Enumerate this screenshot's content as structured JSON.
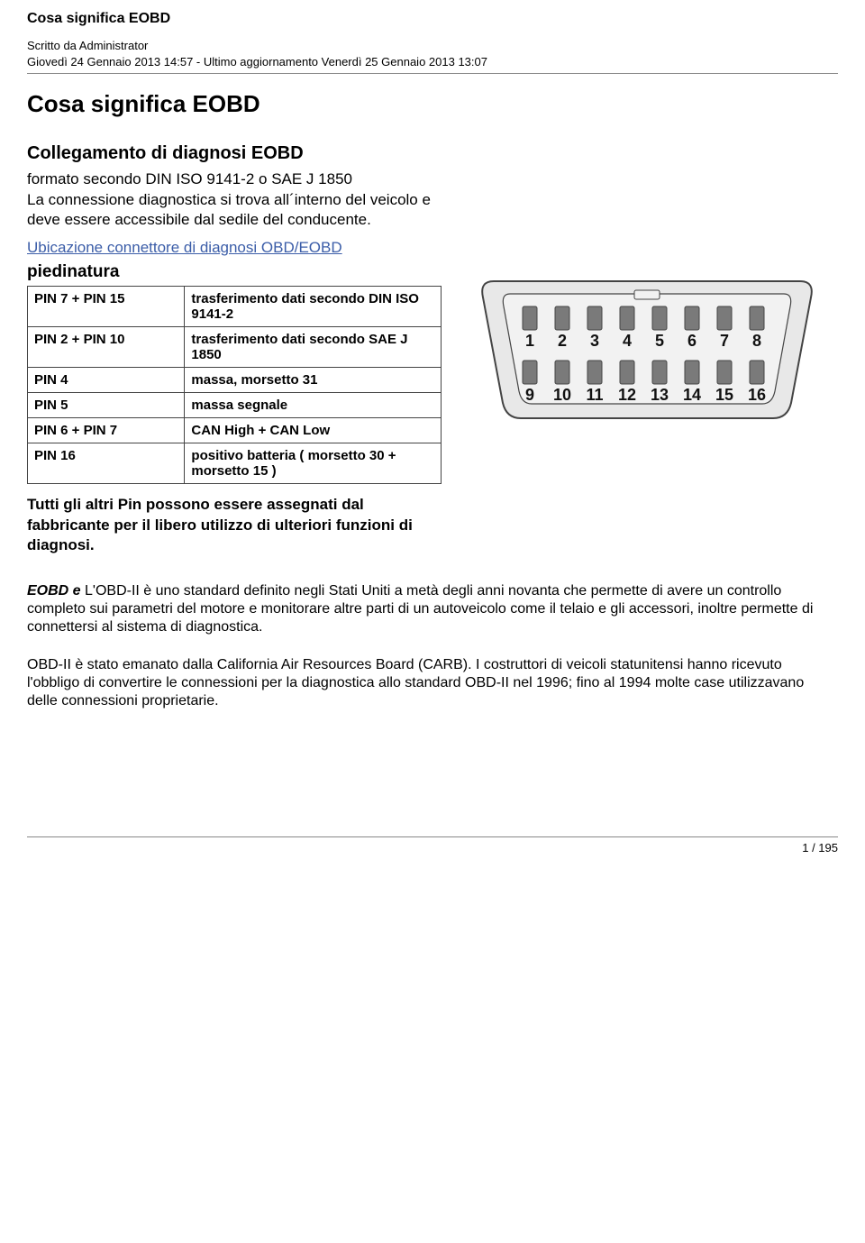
{
  "header": {
    "title": "Cosa significa EOBD",
    "author_line": "Scritto da Administrator",
    "date_line": "Giovedì 24 Gennaio 2013 14:57 - Ultimo aggiornamento Venerdì 25 Gennaio 2013 13:07"
  },
  "article": {
    "title": "Cosa significa EOBD"
  },
  "info": {
    "section_heading": "Collegamento di diagnosi EOBD",
    "desc": "formato secondo DIN ISO 9141-2 o SAE J 1850\nLa connessione diagnostica si trova all´interno del veicolo e deve essere accessibile dal sedile del conducente.",
    "location_link": "Ubicazione connettore di diagnosi OBD/EOBD",
    "pinout_heading": "piedinatura",
    "pinout_rows": [
      {
        "pin": "PIN 7 + PIN 15",
        "func": "trasferimento dati secondo DIN ISO 9141-2"
      },
      {
        "pin": "PIN 2 + PIN 10",
        "func": "trasferimento dati secondo SAE J 1850"
      },
      {
        "pin": "PIN 4",
        "func": "massa, morsetto 31"
      },
      {
        "pin": "PIN 5",
        "func": "massa segnale"
      },
      {
        "pin": "PIN 6 + PIN 7",
        "func": "CAN High + CAN Low"
      },
      {
        "pin": "PIN 16",
        "func": "positivo batteria ( morsetto 30 + morsetto 15 )"
      }
    ],
    "note": "Tutti gli altri Pin possono essere assegnati dal fabbricante per il libero utilizzo di ulteriori funzioni di diagnosi."
  },
  "connector": {
    "top_row": [
      "1",
      "2",
      "3",
      "4",
      "5",
      "6",
      "7",
      "8"
    ],
    "bottom_row": [
      "9",
      "10",
      "11",
      "12",
      "13",
      "14",
      "15",
      "16"
    ],
    "colors": {
      "body": "#e8e8e8",
      "inner": "#f2f2f2",
      "pin": "#7a7a7a",
      "stroke": "#444444",
      "label": "#111111"
    }
  },
  "body": {
    "p1_lead": "EOBD e ",
    "p1": "L'OBD-II è uno standard definito negli Stati Uniti a metà degli anni novanta che permette di avere un controllo completo sui parametri del motore e monitorare altre parti di un autoveicolo come il telaio e gli accessori, inoltre permette di connettersi al sistema di diagnostica.",
    "p2": "OBD-II è stato emanato dalla California Air Resources Board (CARB). I costruttori di veicoli statunitensi hanno ricevuto l'obbligo di convertire le connessioni per la diagnostica allo standard OBD-II nel 1996; fino al 1994 molte case utilizzavano delle connessioni proprietarie."
  },
  "footer": {
    "page": "1 / 195"
  }
}
